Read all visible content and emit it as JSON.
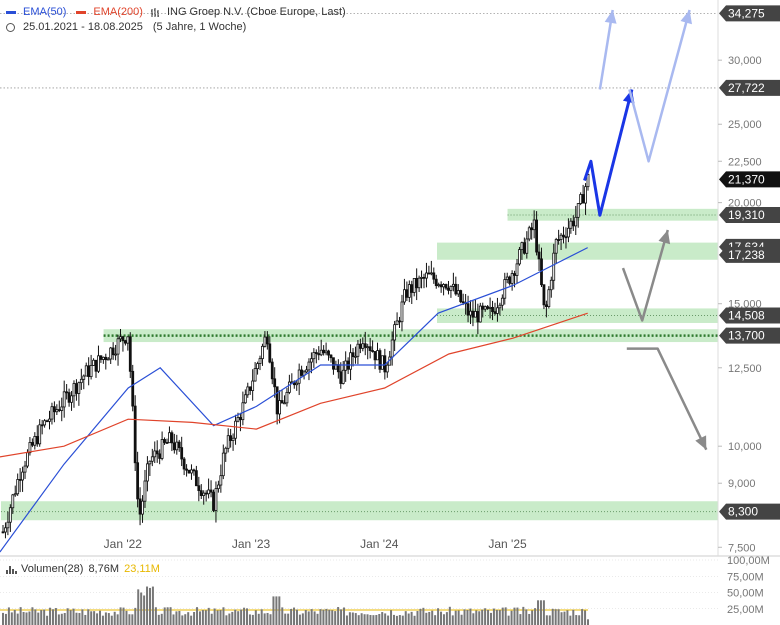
{
  "legend": {
    "ema50_label": "EMA(50)",
    "ema200_label": "EMA(200)",
    "instrument": "ING Groep N.V. (Cboe Europe, Last)",
    "range": "25.01.2021 - 18.08.2025",
    "range_detail": "(5 Jahre, 1 Woche)",
    "volume_label": "Volumen(28)",
    "volume_value": "8,76M",
    "volume_avg": "23,11M"
  },
  "colors": {
    "ema50": "#2a4fd6",
    "ema200": "#e0442b",
    "candle": "#111111",
    "zone": "#bfe8bf",
    "arrow_dark_blue": "#1a36e6",
    "arrow_light_blue": "#a9b9f0",
    "arrow_gray": "#8a8a8a",
    "badge": "#444444",
    "badge_last": "#111111"
  },
  "chart_data": {
    "type": "line",
    "title": "ING Groep N.V. (Cboe Europe, Last)",
    "y_scale": "log",
    "ylim": [
      7.4,
      35.2
    ],
    "x_ticks": [
      "Jan '22",
      "Jan '23",
      "Jan '24",
      "Jan '25"
    ],
    "y_ticks": [
      "34,275",
      "30,000",
      "27,722",
      "25,000",
      "22,500",
      "21,370",
      "20,000",
      "19,310",
      "17,634",
      "17,238",
      "15,000",
      "14,508",
      "13,700",
      "12,500",
      "10,000",
      "9,000",
      "8,300",
      "7,500"
    ],
    "series": [
      {
        "name": "ING Groep N.V.",
        "x": [
          "2021-01",
          "2021-03",
          "2021-05",
          "2021-07",
          "2021-09",
          "2021-11",
          "2022-01",
          "2022-02",
          "2022-03",
          "2022-05",
          "2022-07",
          "2022-09",
          "2022-10",
          "2022-12",
          "2023-02",
          "2023-03",
          "2023-05",
          "2023-07",
          "2023-09",
          "2023-11",
          "2024-01",
          "2024-03",
          "2024-05",
          "2024-07",
          "2024-09",
          "2024-11",
          "2025-01",
          "2025-03",
          "2025-04",
          "2025-05",
          "2025-07",
          "2025-08"
        ],
        "values": [
          7.6,
          9.4,
          10.6,
          11.4,
          12.3,
          13.0,
          13.8,
          8.1,
          9.6,
          10.2,
          9.2,
          8.5,
          9.8,
          11.4,
          13.8,
          11.0,
          12.4,
          13.2,
          12.2,
          13.7,
          12.5,
          15.5,
          16.2,
          15.9,
          14.5,
          14.6,
          16.5,
          18.8,
          14.4,
          17.8,
          19.3,
          21.4
        ]
      },
      {
        "name": "EMA(50)",
        "x": [
          "2021-01",
          "2021-07",
          "2022-01",
          "2022-04",
          "2022-09",
          "2023-01",
          "2023-07",
          "2024-01",
          "2024-06",
          "2025-01",
          "2025-08"
        ],
        "values": [
          7.4,
          9.5,
          11.8,
          12.5,
          10.6,
          11.2,
          12.6,
          12.6,
          14.6,
          15.8,
          17.6
        ]
      },
      {
        "name": "EMA(200)",
        "x": [
          "2021-01",
          "2021-07",
          "2022-01",
          "2022-07",
          "2023-01",
          "2023-07",
          "2024-01",
          "2024-07",
          "2025-01",
          "2025-08"
        ],
        "values": [
          9.7,
          10.0,
          10.8,
          10.7,
          10.5,
          11.3,
          11.8,
          13.0,
          13.6,
          14.6
        ]
      }
    ],
    "price_levels": [
      {
        "label": "34,275",
        "value": 34.275
      },
      {
        "label": "27,722",
        "value": 27.722
      },
      {
        "label": "21,370",
        "value": 21.37,
        "last": true
      },
      {
        "label": "19,310",
        "value": 19.31
      },
      {
        "label": "17,634",
        "value": 17.634
      },
      {
        "label": "17,238",
        "value": 17.238
      },
      {
        "label": "14,508",
        "value": 14.508
      },
      {
        "label": "13,700",
        "value": 13.7
      },
      {
        "label": "8,300",
        "value": 8.3
      }
    ],
    "volume": {
      "y_ticks": [
        "100,00M",
        "75,00M",
        "50,00M",
        "25,00M"
      ],
      "ylim": [
        0,
        100
      ]
    }
  }
}
